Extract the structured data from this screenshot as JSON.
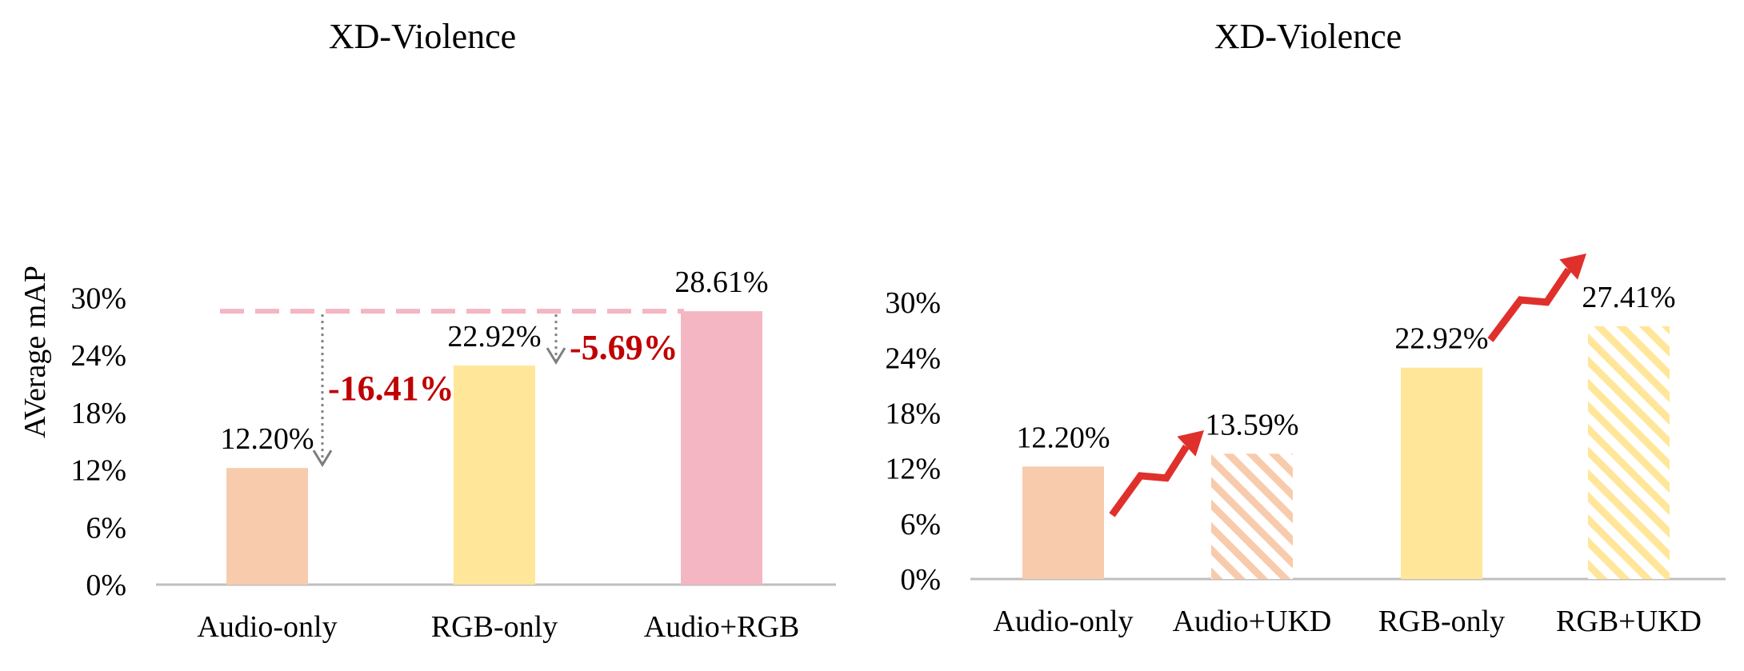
{
  "colors": {
    "audio": "#F8CBAD",
    "rgb": "#FFE699",
    "audio_rgb": "#F4B6C2",
    "dashed_line": "#F4B6C2",
    "drop_arrow": "#7F7F7F",
    "delta_text": "#C00000",
    "gain_arrow": "#E0302C",
    "axis": "#BFBFBF"
  },
  "chart_data": [
    {
      "type": "bar",
      "title": "XD-Violence",
      "ylabel": "AVerage mAP",
      "xlabel": "",
      "categories": [
        "Audio-only",
        "RGB-only",
        "Audio+RGB"
      ],
      "values": [
        12.2,
        22.92,
        28.61
      ],
      "value_labels": [
        "12.20%",
        "22.92%",
        "28.61%"
      ],
      "bar_colors": [
        "audio",
        "rgb",
        "audio_rgb"
      ],
      "hatched": [
        false,
        false,
        false
      ],
      "ylim": [
        0,
        30
      ],
      "yticks": [
        0,
        6,
        12,
        18,
        24,
        30
      ],
      "ytick_labels": [
        "0%",
        "6%",
        "12%",
        "18%",
        "24%",
        "30%"
      ],
      "reference_line": 28.61,
      "annotations": [
        {
          "text": "-16.41%",
          "arrow_to_category": 0
        },
        {
          "text": "-5.69%",
          "arrow_to_category": 1
        }
      ],
      "grid": false
    },
    {
      "type": "bar",
      "title": "XD-Violence",
      "ylabel": "",
      "xlabel": "",
      "categories": [
        "Audio-only",
        "Audio+UKD",
        "RGB-only",
        "RGB+UKD"
      ],
      "values": [
        12.2,
        13.59,
        22.92,
        27.41
      ],
      "value_labels": [
        "12.20%",
        "13.59%",
        "22.92%",
        "27.41%"
      ],
      "bar_colors": [
        "audio",
        "audio",
        "rgb",
        "rgb"
      ],
      "hatched": [
        false,
        true,
        false,
        true
      ],
      "ylim": [
        0,
        30
      ],
      "yticks": [
        0,
        6,
        12,
        18,
        24,
        30
      ],
      "ytick_labels": [
        "0%",
        "6%",
        "12%",
        "18%",
        "24%",
        "30%"
      ],
      "gain_arrows": [
        [
          0,
          1
        ],
        [
          2,
          3
        ]
      ],
      "grid": false
    }
  ]
}
